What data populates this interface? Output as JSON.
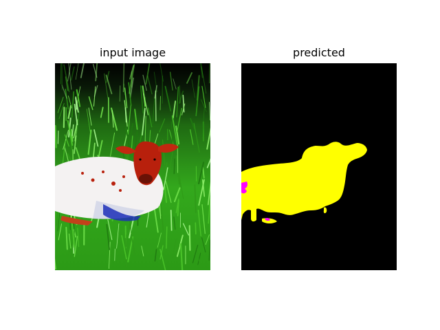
{
  "panels": [
    {
      "title": "input image"
    },
    {
      "title": "predicted"
    }
  ],
  "colors": {
    "background": "#ffffff",
    "mask_background": "#000000",
    "mask_cow": "#ffff00",
    "mask_other": "#ff00ff",
    "grass": "#2fa61a",
    "cow_head": "#b8200c",
    "cow_body": "#f2f2f2"
  }
}
